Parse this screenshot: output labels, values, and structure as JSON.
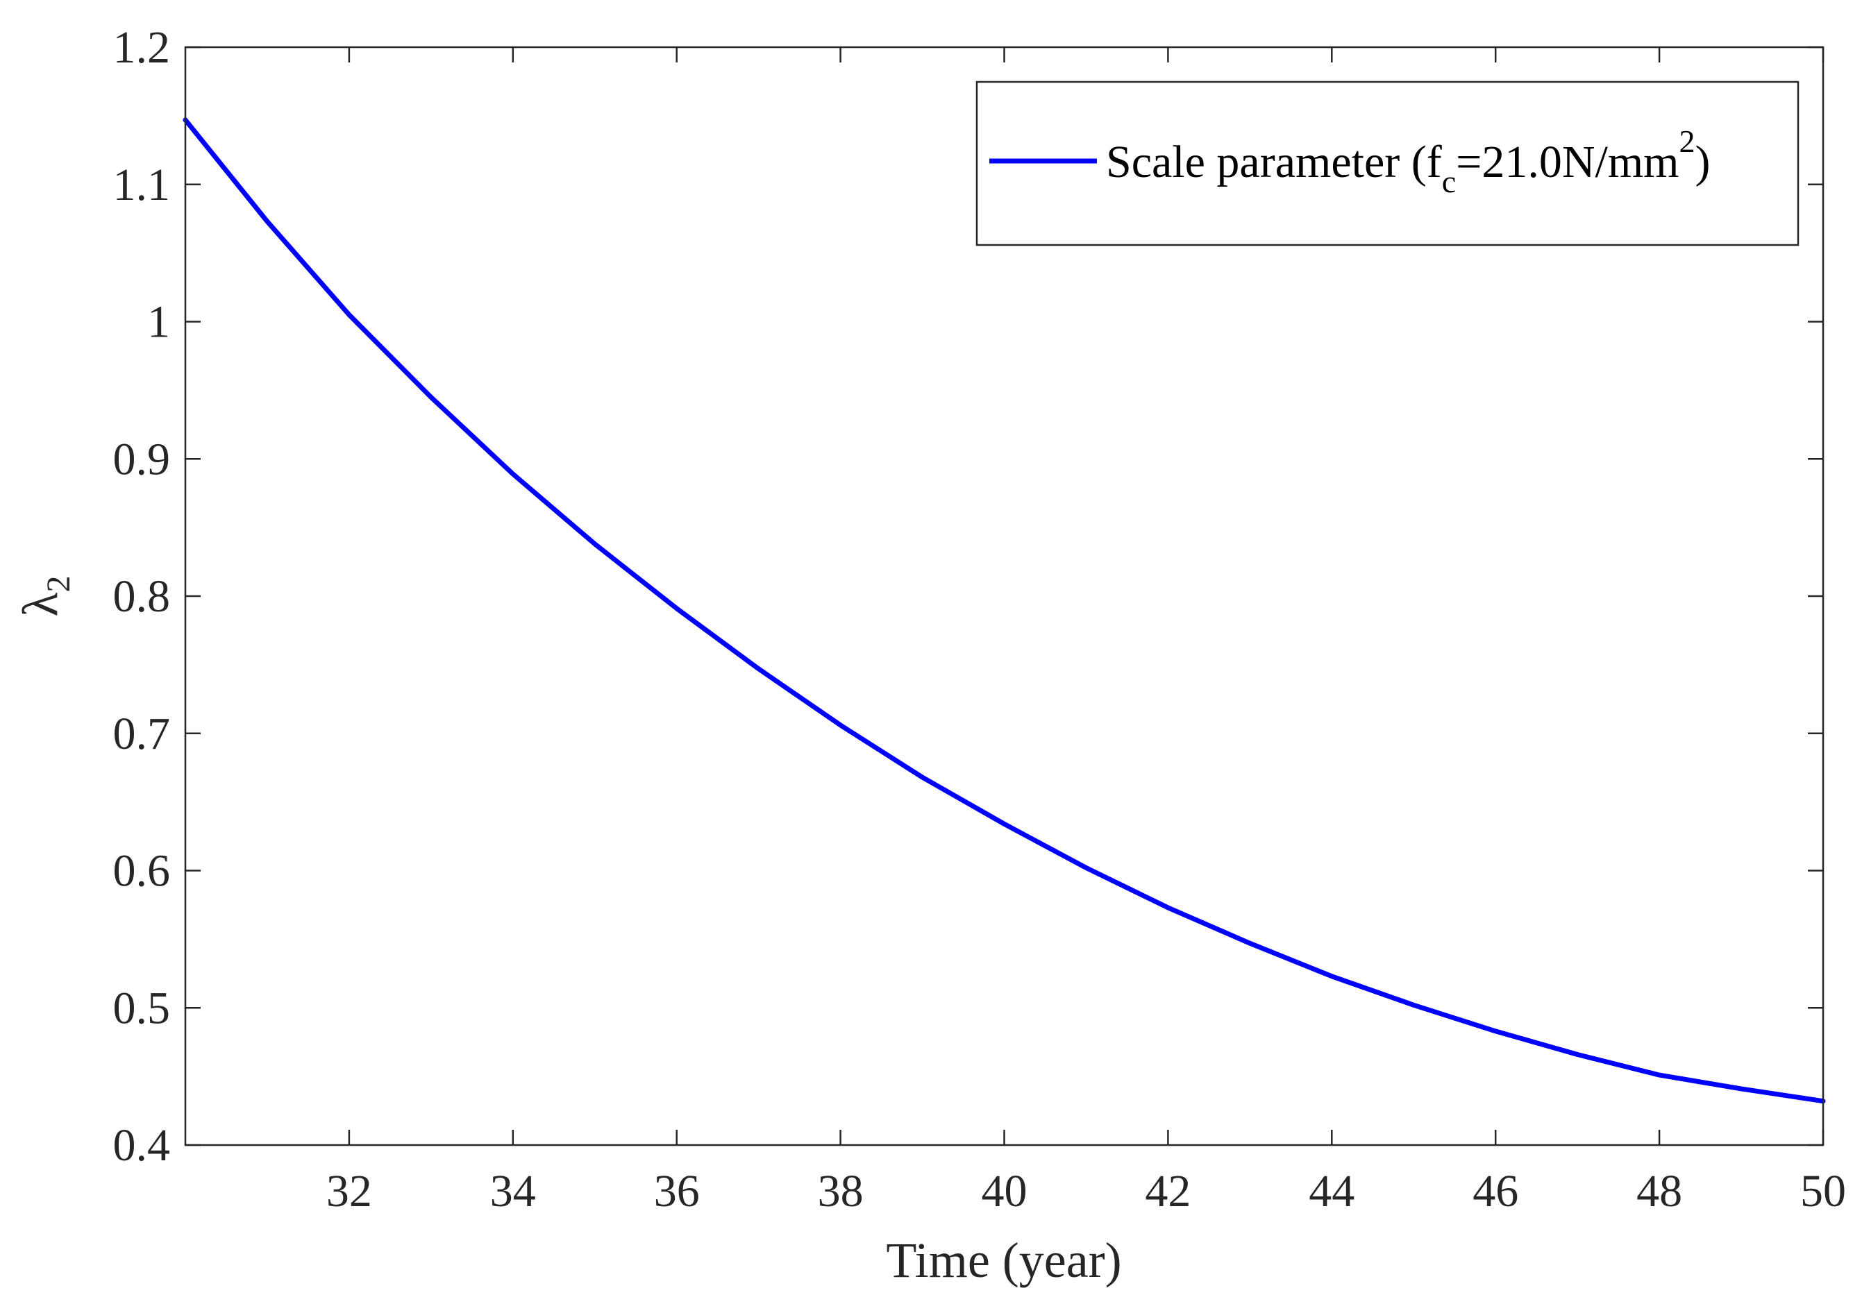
{
  "chart_data": {
    "type": "line",
    "title": "",
    "xlabel": "Time (year)",
    "ylabel": {
      "symbol": "λ",
      "subscript": "2"
    },
    "xlim": [
      30,
      50
    ],
    "ylim": [
      0.4,
      1.2
    ],
    "x_ticks": [
      {
        "value": 32,
        "label": "32"
      },
      {
        "value": 34,
        "label": "34"
      },
      {
        "value": 36,
        "label": "36"
      },
      {
        "value": 38,
        "label": "38"
      },
      {
        "value": 40,
        "label": "40"
      },
      {
        "value": 42,
        "label": "42"
      },
      {
        "value": 44,
        "label": "44"
      },
      {
        "value": 46,
        "label": "46"
      },
      {
        "value": 48,
        "label": "48"
      },
      {
        "value": 50,
        "label": "50"
      }
    ],
    "y_ticks": [
      {
        "value": 0.4,
        "label": "0.4"
      },
      {
        "value": 0.5,
        "label": "0.5"
      },
      {
        "value": 0.6,
        "label": "0.6"
      },
      {
        "value": 0.7,
        "label": "0.7"
      },
      {
        "value": 0.8,
        "label": "0.8"
      },
      {
        "value": 0.9,
        "label": "0.9"
      },
      {
        "value": 1.0,
        "label": "1"
      },
      {
        "value": 1.1,
        "label": "1.1"
      },
      {
        "value": 1.2,
        "label": "1.2"
      }
    ],
    "grid": false,
    "legend": {
      "placement": "top-right",
      "label_main": "Scale parameter (f",
      "label_sub": "c",
      "label_mid": "=21.0N/mm",
      "label_sup": "2",
      "label_end": ")"
    },
    "series": [
      {
        "name": "Scale parameter (fc=21.0N/mm2)",
        "color": "#0000ff",
        "x": [
          30,
          31,
          32,
          33,
          34,
          35,
          36,
          37,
          38,
          39,
          40,
          41,
          42,
          43,
          44,
          45,
          46,
          47,
          48,
          49,
          50
        ],
        "y": [
          1.147,
          1.073,
          1.005,
          0.945,
          0.889,
          0.838,
          0.791,
          0.747,
          0.706,
          0.668,
          0.634,
          0.602,
          0.573,
          0.547,
          0.523,
          0.502,
          0.483,
          0.466,
          0.451,
          0.441,
          0.432
        ]
      }
    ]
  }
}
